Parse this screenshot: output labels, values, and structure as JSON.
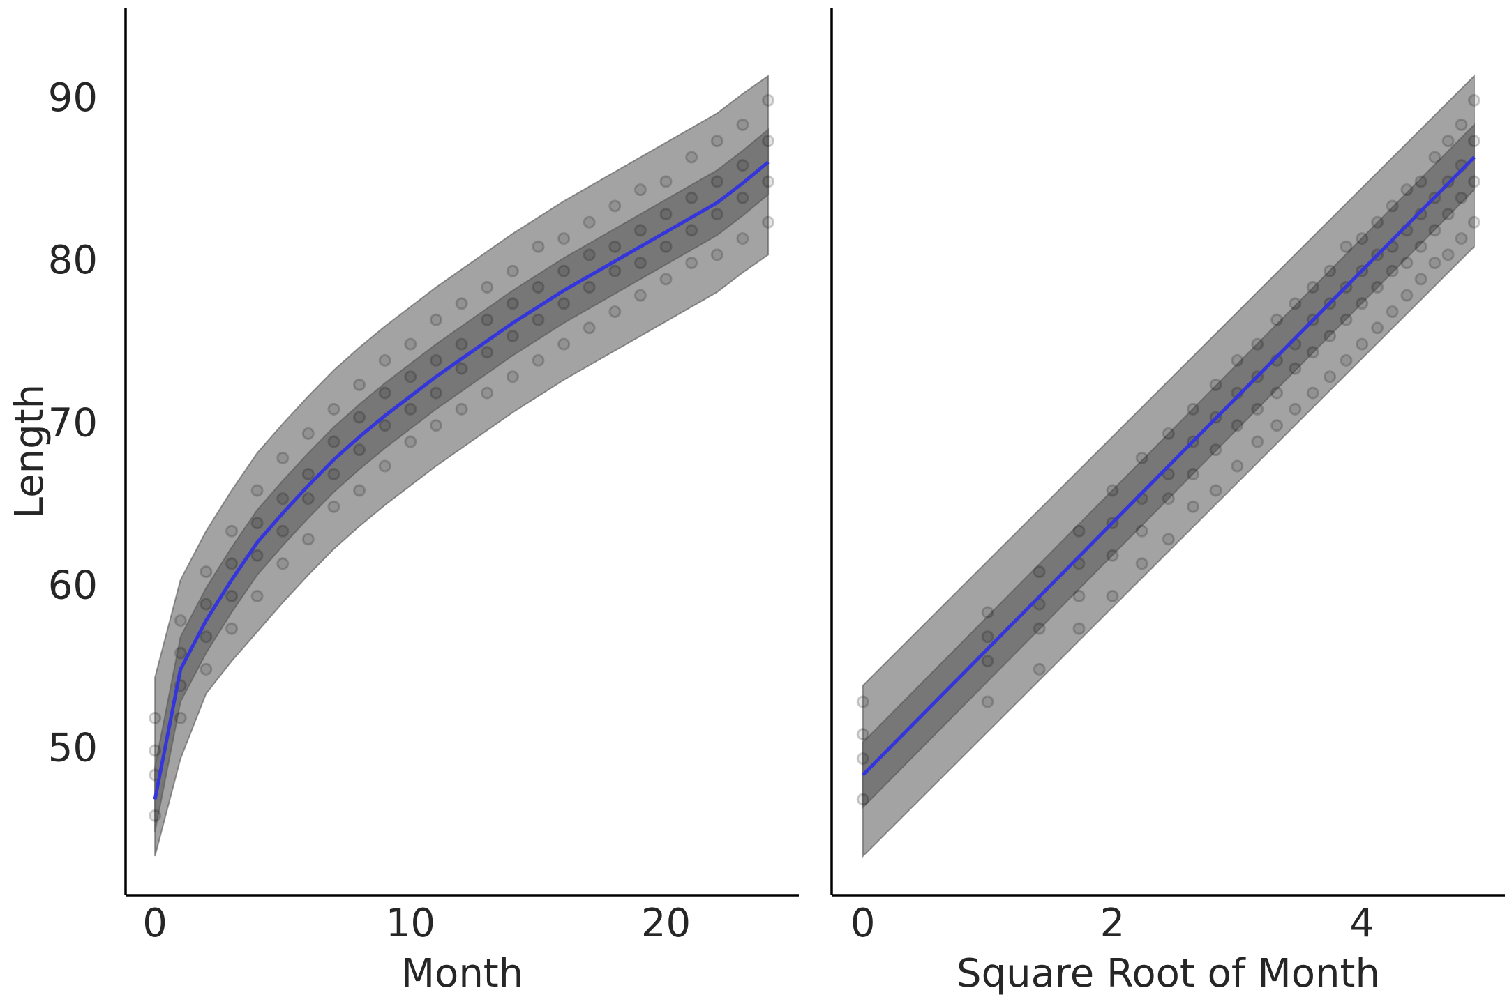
{
  "chart_data": [
    {
      "type": "scatter",
      "xlabel": "Month",
      "ylabel": "Length",
      "xlim": [
        -1.15,
        25.2
      ],
      "ylim": [
        41.1,
        95.7
      ],
      "xticks": [
        0,
        10,
        20
      ],
      "yticks": [
        50,
        60,
        70,
        80,
        90
      ],
      "points": {
        "color": "#000000",
        "x": [
          0,
          0,
          0,
          0,
          1,
          1,
          1,
          1,
          2,
          2,
          2,
          2,
          3,
          3,
          3,
          3,
          4,
          4,
          4,
          4,
          5,
          5,
          5,
          5,
          6,
          6,
          6,
          6,
          7,
          7,
          7,
          7,
          8,
          8,
          8,
          8,
          9,
          9,
          9,
          9,
          10,
          10,
          10,
          10,
          11,
          11,
          11,
          11,
          12,
          12,
          12,
          12,
          13,
          13,
          13,
          13,
          14,
          14,
          14,
          14,
          15,
          15,
          15,
          15,
          16,
          16,
          16,
          16,
          17,
          17,
          17,
          17,
          18,
          18,
          18,
          18,
          19,
          19,
          19,
          19,
          20,
          20,
          20,
          20,
          21,
          21,
          21,
          21,
          22,
          22,
          22,
          22,
          23,
          23,
          23,
          23,
          24,
          24,
          24,
          24
        ],
        "y": [
          46,
          48.5,
          50,
          52,
          52,
          54,
          56,
          58,
          55,
          57,
          59,
          61,
          57.5,
          59.5,
          61.5,
          63.5,
          59.5,
          62,
          64,
          66,
          61.5,
          63.5,
          65.5,
          68,
          63,
          65.5,
          67,
          69.5,
          65,
          67,
          69,
          71,
          66,
          68.5,
          70.5,
          72.5,
          67.5,
          70,
          72,
          74,
          69,
          71,
          73,
          75,
          70,
          72,
          74,
          76.5,
          71,
          73.5,
          75,
          77.5,
          72,
          74.5,
          76.5,
          78.5,
          73,
          75.5,
          77.5,
          79.5,
          74,
          76.5,
          78.5,
          81,
          75,
          77.5,
          79.5,
          81.5,
          76,
          78.5,
          80.5,
          82.5,
          77,
          79.5,
          81,
          83.5,
          78,
          80,
          82,
          84.5,
          79,
          81,
          83,
          85,
          80,
          82,
          84,
          86.5,
          80.5,
          83,
          85,
          87.5,
          81.5,
          84,
          86,
          88.5,
          82.5,
          85,
          87.5,
          90
        ]
      },
      "mean": {
        "color": "#3535dc",
        "x": [
          0,
          1,
          2,
          3,
          4,
          5,
          6,
          7,
          8,
          9,
          10,
          11,
          12,
          13,
          14,
          15,
          16,
          17,
          18,
          19,
          20,
          21,
          22,
          23,
          24
        ],
        "y": [
          47,
          55,
          58,
          60.5,
          62.8,
          64.6,
          66.3,
          67.9,
          69.3,
          70.6,
          71.8,
          73,
          74.1,
          75.2,
          76.3,
          77.3,
          78.3,
          79.2,
          80.1,
          81,
          81.9,
          82.8,
          83.7,
          84.9,
          86.2
        ]
      },
      "outer_band": {
        "color": "#a3a3a3",
        "x": [
          0,
          1,
          2,
          3,
          4,
          5,
          6,
          7,
          8,
          9,
          10,
          11,
          12,
          13,
          14,
          15,
          16,
          17,
          18,
          19,
          20,
          21,
          22,
          23,
          24
        ],
        "lower": [
          43.5,
          49.5,
          53.5,
          55.5,
          57.3,
          59.1,
          60.8,
          62.4,
          63.8,
          65.1,
          66.3,
          67.5,
          68.6,
          69.7,
          70.8,
          71.8,
          72.8,
          73.7,
          74.6,
          75.5,
          76.4,
          77.3,
          78.2,
          79.4,
          80.5
        ],
        "upper": [
          54.5,
          60.5,
          63.5,
          66,
          68.3,
          70.1,
          71.8,
          73.4,
          74.8,
          76.1,
          77.3,
          78.5,
          79.6,
          80.7,
          81.8,
          82.8,
          83.8,
          84.7,
          85.6,
          86.5,
          87.4,
          88.3,
          89.2,
          90.4,
          91.5
        ]
      },
      "inner_band": {
        "color": "#777777",
        "x": [
          0,
          1,
          2,
          3,
          4,
          5,
          6,
          7,
          8,
          9,
          10,
          11,
          12,
          13,
          14,
          15,
          16,
          17,
          18,
          19,
          20,
          21,
          22,
          23,
          24
        ],
        "lower": [
          45,
          53,
          56,
          58.5,
          60.8,
          62.6,
          64.3,
          65.9,
          67.3,
          68.6,
          69.8,
          71,
          72.1,
          73.2,
          74.3,
          75.3,
          76.3,
          77.2,
          78.1,
          79,
          79.9,
          80.8,
          81.7,
          82.9,
          84.2
        ],
        "upper": [
          49,
          57,
          60,
          62.5,
          64.8,
          66.6,
          68.3,
          69.9,
          71.3,
          72.6,
          73.8,
          75,
          76.1,
          77.2,
          78.3,
          79.3,
          80.3,
          81.2,
          82.1,
          83,
          83.9,
          84.8,
          85.7,
          86.9,
          88.2
        ]
      }
    },
    {
      "type": "scatter",
      "xlabel": "Square Root of Month",
      "xlim": [
        -0.25,
        5.145
      ],
      "ylim": [
        41.1,
        95.7
      ],
      "xticks": [
        0,
        2,
        4
      ],
      "points": {
        "color": "#000000",
        "x": [
          0,
          0,
          0,
          0,
          1,
          1,
          1,
          1,
          1.414,
          1.414,
          1.414,
          1.414,
          1.732,
          1.732,
          1.732,
          1.732,
          2,
          2,
          2,
          2,
          2.236,
          2.236,
          2.236,
          2.236,
          2.449,
          2.449,
          2.449,
          2.449,
          2.646,
          2.646,
          2.646,
          2.646,
          2.828,
          2.828,
          2.828,
          2.828,
          3,
          3,
          3,
          3,
          3.162,
          3.162,
          3.162,
          3.162,
          3.317,
          3.317,
          3.317,
          3.317,
          3.464,
          3.464,
          3.464,
          3.464,
          3.606,
          3.606,
          3.606,
          3.606,
          3.742,
          3.742,
          3.742,
          3.742,
          3.873,
          3.873,
          3.873,
          3.873,
          4,
          4,
          4,
          4,
          4.123,
          4.123,
          4.123,
          4.123,
          4.243,
          4.243,
          4.243,
          4.243,
          4.359,
          4.359,
          4.359,
          4.359,
          4.472,
          4.472,
          4.472,
          4.472,
          4.583,
          4.583,
          4.583,
          4.583,
          4.69,
          4.69,
          4.69,
          4.69,
          4.796,
          4.796,
          4.796,
          4.796,
          4.899,
          4.899,
          4.899,
          4.899
        ],
        "y": [
          47,
          49.5,
          51,
          53,
          53,
          55.5,
          57,
          58.5,
          55,
          57.5,
          59,
          61,
          57.5,
          59.5,
          61.5,
          63.5,
          59.5,
          62,
          64,
          66,
          61.5,
          63.5,
          65.5,
          68,
          63,
          65.5,
          67,
          69.5,
          65,
          67,
          69,
          71,
          66,
          68.5,
          70.5,
          72.5,
          67.5,
          70,
          72,
          74,
          69,
          71,
          73,
          75,
          70,
          72,
          74,
          76.5,
          71,
          73.5,
          75,
          77.5,
          72,
          74.5,
          76.5,
          78.5,
          73,
          75.5,
          77.5,
          79.5,
          74,
          76.5,
          78.5,
          81,
          75,
          77.5,
          79.5,
          81.5,
          76,
          78.5,
          80.5,
          82.5,
          77,
          79.5,
          81,
          83.5,
          78,
          80,
          82,
          84.5,
          79,
          81,
          83,
          85,
          80,
          82,
          84,
          86.5,
          80.5,
          83,
          85,
          87.5,
          81.5,
          84,
          86,
          88.5,
          82.5,
          85,
          87.5,
          90
        ]
      },
      "mean": {
        "color": "#3535dc",
        "x": [
          0,
          4.899
        ],
        "y": [
          48.5,
          86.5
        ]
      },
      "outer_band": {
        "color": "#a3a3a3",
        "x": [
          0,
          4.899
        ],
        "lower": [
          43.5,
          81
        ],
        "upper": [
          54,
          91.5
        ]
      },
      "inner_band": {
        "color": "#777777",
        "x": [
          0,
          4.899
        ],
        "lower": [
          46.5,
          84.5
        ],
        "upper": [
          50.5,
          88.5
        ]
      }
    }
  ]
}
